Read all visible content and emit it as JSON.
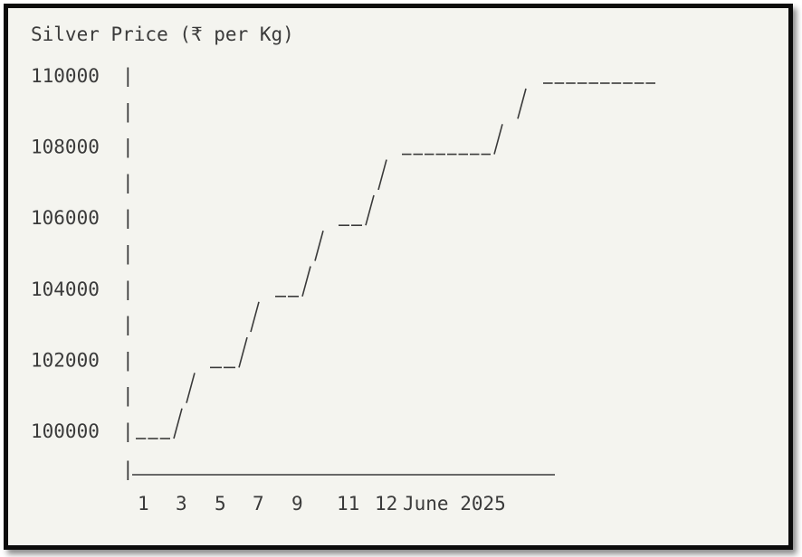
{
  "chart_data": {
    "type": "line",
    "title": "Silver Price (₹ per Kg)",
    "xlabel": "June 2025",
    "ylabel": "",
    "ylim": [
      99000,
      110500
    ],
    "yticks": [
      "110000",
      "108000",
      "106000",
      "104000",
      "102000",
      "100000"
    ],
    "xticks": [
      "1",
      "3",
      "5",
      "7",
      "9",
      "11",
      "12",
      "June 2025"
    ],
    "x": [
      1,
      2,
      3,
      4,
      5,
      6,
      7,
      8,
      9,
      10,
      11,
      12
    ],
    "values": [
      100000,
      101000,
      102000,
      103000,
      104000,
      105000,
      106000,
      107000,
      108000,
      108000,
      109000,
      110000
    ],
    "grid": false,
    "style": "ascii",
    "colors": {
      "text": "#3a3a3a",
      "background": "#f4f4ef",
      "border": "#0c0c0c"
    }
  }
}
